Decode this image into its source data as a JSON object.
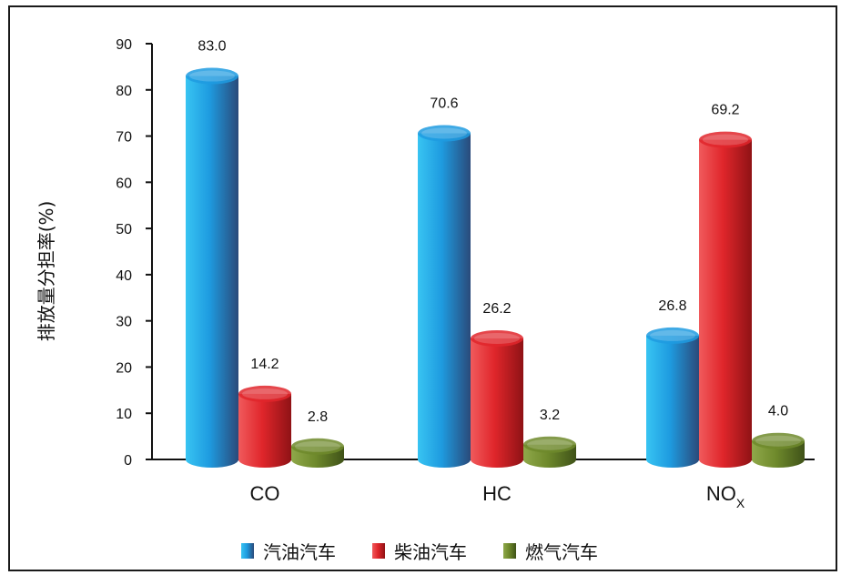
{
  "chart_data": {
    "type": "bar",
    "title": "",
    "ylabel": "排放量分担率(%)",
    "xlabel": "",
    "ylim": [
      0,
      90
    ],
    "yticks": [
      0,
      10,
      20,
      30,
      40,
      50,
      60,
      70,
      80,
      90
    ],
    "categories": [
      {
        "main": "CO",
        "sub": ""
      },
      {
        "main": "HC",
        "sub": ""
      },
      {
        "main": "NO",
        "sub": "X"
      }
    ],
    "series": [
      {
        "name": "汽油汽车",
        "color": "#1e9be0",
        "values": [
          83.0,
          70.6,
          26.8
        ],
        "labels": [
          "83.0",
          "70.6",
          "26.8"
        ]
      },
      {
        "name": "柴油汽车",
        "color": "#e0262b",
        "values": [
          14.2,
          26.2,
          69.2
        ],
        "labels": [
          "14.2",
          "26.2",
          "69.2"
        ]
      },
      {
        "name": "燃气汽车",
        "color": "#6f8a2c",
        "values": [
          2.8,
          3.2,
          4.0
        ],
        "labels": [
          "2.8",
          "3.2",
          "4.0"
        ]
      }
    ],
    "legend_position": "bottom",
    "grid": false
  }
}
